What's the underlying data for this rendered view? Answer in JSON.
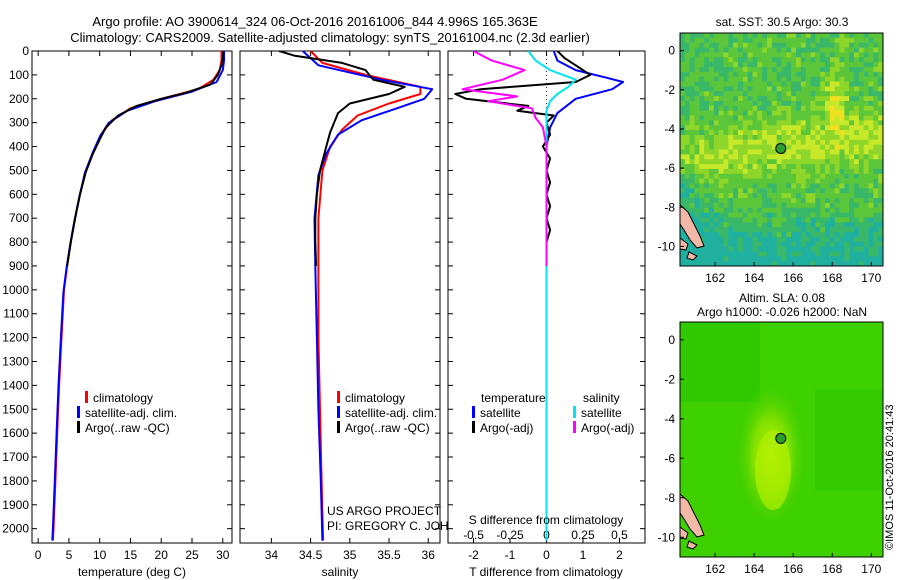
{
  "header": {
    "line1": "Argo profile: AO 3900614_324 06-Oct-2016 20161006_844 4.996S 165.363E",
    "line2": "Climatology: CARS2009. Satellite-adjusted climatology: synTS_20161004.nc (2.3d earlier)"
  },
  "side_label": "©IMOS 11-Oct-2016 20:41:43",
  "colors": {
    "clim": "#ff0000",
    "sat": "#0000ff",
    "argo": "#000000",
    "sat_sal": "#00e5ee",
    "argo_sal": "#ff00ff",
    "land": "#f2b8a8"
  },
  "chart_data": [
    {
      "type": "line",
      "id": "temp",
      "xlabel": "temperature (deg C)",
      "ylabel": "",
      "xlim": [
        -1,
        31.5
      ],
      "ylim": [
        0,
        2060
      ],
      "xticks": [
        0,
        5,
        10,
        15,
        20,
        25,
        30
      ],
      "yticks": [
        0,
        100,
        200,
        300,
        400,
        500,
        600,
        700,
        800,
        900,
        1000,
        1100,
        1200,
        1300,
        1400,
        1500,
        1600,
        1700,
        1800,
        1900,
        2000
      ],
      "legend": [
        "climatology",
        "satellite-adj. clim.",
        "Argo(..raw -QC)"
      ],
      "series": [
        {
          "name": "climatology",
          "color": "#ff0000",
          "points": [
            [
              29.8,
              0
            ],
            [
              29.8,
              40
            ],
            [
              29.5,
              80
            ],
            [
              28.5,
              120
            ],
            [
              26,
              160
            ],
            [
              20,
              200
            ],
            [
              15,
              240
            ],
            [
              12,
              290
            ],
            [
              10.2,
              350
            ],
            [
              9,
              420
            ],
            [
              7.8,
              500
            ],
            [
              6.8,
              600
            ],
            [
              6,
              700
            ],
            [
              5.3,
              800
            ],
            [
              4.7,
              900
            ],
            [
              4.2,
              1000
            ],
            [
              3.8,
              1200
            ],
            [
              3.4,
              1400
            ],
            [
              3.1,
              1600
            ],
            [
              2.8,
              1800
            ],
            [
              2.5,
              2000
            ],
            [
              2.4,
              2050
            ]
          ]
        },
        {
          "name": "satellite-adj. clim.",
          "color": "#0000ff",
          "points": [
            [
              30.2,
              0
            ],
            [
              30.2,
              40
            ],
            [
              30,
              80
            ],
            [
              29,
              130
            ],
            [
              25,
              170
            ],
            [
              19,
              210
            ],
            [
              14.5,
              250
            ],
            [
              11.5,
              300
            ],
            [
              10,
              360
            ],
            [
              8.8,
              430
            ],
            [
              7.6,
              510
            ],
            [
              6.7,
              610
            ],
            [
              5.9,
              710
            ],
            [
              5.2,
              810
            ],
            [
              4.6,
              910
            ],
            [
              4.1,
              1010
            ],
            [
              3.7,
              1200
            ],
            [
              3.3,
              1400
            ],
            [
              3,
              1600
            ],
            [
              2.7,
              1800
            ],
            [
              2.4,
              2000
            ],
            [
              2.3,
              2050
            ]
          ]
        },
        {
          "name": "Argo(..raw -QC)",
          "color": "#000000",
          "points": [
            [
              30.1,
              0
            ],
            [
              30,
              30
            ],
            [
              29.8,
              60
            ],
            [
              29.2,
              100
            ],
            [
              28,
              140
            ],
            [
              24,
              175
            ],
            [
              20,
              200
            ],
            [
              16,
              230
            ],
            [
              13,
              270
            ],
            [
              11,
              320
            ],
            [
              10,
              370
            ],
            [
              8.9,
              430
            ],
            [
              7.7,
              510
            ],
            [
              6.8,
              600
            ],
            [
              6,
              700
            ],
            [
              5.3,
              800
            ],
            [
              4.7,
              900
            ]
          ]
        }
      ]
    },
    {
      "type": "line",
      "id": "sal",
      "xlabel": "salinity",
      "ylabel": "",
      "xlim": [
        33.6,
        36.15
      ],
      "ylim": [
        0,
        2060
      ],
      "xticks": [
        34,
        34.5,
        35,
        35.5,
        36
      ],
      "tick_labels": [
        "34",
        "34.5",
        "35",
        "35.5",
        "36"
      ],
      "legend": [
        "climatology",
        "satellite-adj. clim.",
        "Argo(..raw -QC)"
      ],
      "annotation": [
        "US ARGO PROJECT",
        "PI: GREGORY C. JOHNSON"
      ],
      "series": [
        {
          "name": "climatology",
          "color": "#ff0000",
          "points": [
            [
              34.5,
              0
            ],
            [
              34.65,
              50
            ],
            [
              35.2,
              100
            ],
            [
              35.9,
              150
            ],
            [
              35.9,
              180
            ],
            [
              35.5,
              220
            ],
            [
              35.1,
              270
            ],
            [
              34.9,
              330
            ],
            [
              34.75,
              400
            ],
            [
              34.65,
              500
            ],
            [
              34.6,
              700
            ],
            [
              34.6,
              900
            ],
            [
              34.6,
              1200
            ],
            [
              34.62,
              1500
            ],
            [
              34.64,
              1800
            ],
            [
              34.66,
              2050
            ]
          ]
        },
        {
          "name": "satellite-adj. clim.",
          "color": "#0000ff",
          "points": [
            [
              34.4,
              0
            ],
            [
              34.6,
              60
            ],
            [
              35.4,
              120
            ],
            [
              36.05,
              160
            ],
            [
              35.95,
              200
            ],
            [
              35.6,
              240
            ],
            [
              35.15,
              290
            ],
            [
              34.85,
              350
            ],
            [
              34.7,
              430
            ],
            [
              34.6,
              520
            ],
            [
              34.55,
              700
            ],
            [
              34.56,
              900
            ],
            [
              34.58,
              1200
            ],
            [
              34.6,
              1500
            ],
            [
              34.63,
              1800
            ],
            [
              34.65,
              2050
            ]
          ]
        },
        {
          "name": "Argo(..raw -QC)",
          "color": "#000000",
          "points": [
            [
              34.1,
              0
            ],
            [
              34.3,
              20
            ],
            [
              34.9,
              50
            ],
            [
              35.2,
              80
            ],
            [
              35.3,
              120
            ],
            [
              35.7,
              150
            ],
            [
              35.5,
              180
            ],
            [
              35.0,
              220
            ],
            [
              34.85,
              260
            ],
            [
              34.8,
              300
            ],
            [
              34.75,
              340
            ],
            [
              34.7,
              400
            ],
            [
              34.62,
              500
            ],
            [
              34.58,
              600
            ],
            [
              34.56,
              700
            ],
            [
              34.56,
              800
            ],
            [
              34.57,
              900
            ]
          ]
        }
      ]
    },
    {
      "type": "line",
      "id": "diff",
      "xlabel": "T difference from climatology",
      "xlabel_top": "S difference from climatology",
      "xlim": [
        -2.7,
        2.7
      ],
      "ylim": [
        0,
        2060
      ],
      "xticks": [
        -2,
        -1,
        0,
        1,
        2
      ],
      "tick_labels": [
        "-2",
        "-1",
        "0",
        "1",
        "2"
      ],
      "s_ticks": [
        -0.5,
        -0.25,
        0,
        0.25,
        0.5
      ],
      "s_tick_labels": [
        "-0.5",
        "-0.25",
        "0",
        "0.25",
        "0.5"
      ],
      "s_ticks_at": [
        -2,
        -1,
        0,
        1,
        2
      ],
      "legend": {
        "temperature": "temperature",
        "salinity": "salinity",
        "t_sat": "satellite",
        "t_argo": "Argo(-adj)",
        "s_sat": "satellite",
        "s_argo": "Argo(-adj)"
      },
      "series": [
        {
          "name": "temperature satellite",
          "color": "#0000ff",
          "points": [
            [
              0.2,
              0
            ],
            [
              0.3,
              40
            ],
            [
              0.8,
              80
            ],
            [
              1.6,
              110
            ],
            [
              2.1,
              130
            ],
            [
              1.8,
              160
            ],
            [
              0.8,
              200
            ],
            [
              0.3,
              260
            ],
            [
              0.1,
              320
            ],
            [
              0,
              400
            ],
            [
              0,
              600
            ],
            [
              0,
              900
            ],
            [
              0,
              1200
            ],
            [
              0,
              1500
            ],
            [
              0,
              1800
            ],
            [
              0,
              2050
            ]
          ]
        },
        {
          "name": "temperature Argo(-adj)",
          "color": "#000000",
          "points": [
            [
              0.3,
              0
            ],
            [
              0.5,
              30
            ],
            [
              0.8,
              60
            ],
            [
              1.2,
              100
            ],
            [
              0.8,
              130
            ],
            [
              -1.8,
              160
            ],
            [
              -2.5,
              180
            ],
            [
              -2.2,
              200
            ],
            [
              -0.5,
              230
            ],
            [
              -0.8,
              250
            ],
            [
              0.2,
              270
            ],
            [
              0,
              300
            ],
            [
              0.1,
              350
            ],
            [
              -0.1,
              400
            ],
            [
              0.1,
              450
            ],
            [
              0,
              500
            ],
            [
              0.1,
              550
            ],
            [
              0,
              600
            ],
            [
              0.1,
              650
            ],
            [
              0,
              700
            ],
            [
              0.1,
              750
            ],
            [
              0,
              800
            ],
            [
              0,
              900
            ]
          ]
        },
        {
          "name": "salinity satellite",
          "color": "#00e5ee",
          "points": [
            [
              -0.5,
              0
            ],
            [
              -0.3,
              40
            ],
            [
              0.1,
              80
            ],
            [
              0.8,
              120
            ],
            [
              0.6,
              150
            ],
            [
              0.3,
              180
            ],
            [
              0.1,
              210
            ],
            [
              0,
              250
            ],
            [
              0,
              400
            ],
            [
              0,
              700
            ],
            [
              0,
              1000
            ],
            [
              0,
              1400
            ],
            [
              0,
              1800
            ],
            [
              0,
              2050
            ]
          ]
        },
        {
          "name": "salinity Argo(-adj)",
          "color": "#ff00ff",
          "points": [
            [
              -2,
              0
            ],
            [
              -1.5,
              40
            ],
            [
              -0.6,
              80
            ],
            [
              -1.2,
              120
            ],
            [
              -2.3,
              160
            ],
            [
              -0.8,
              190
            ],
            [
              -1.6,
              210
            ],
            [
              -0.4,
              240
            ],
            [
              -0.3,
              280
            ],
            [
              -0.1,
              320
            ],
            [
              0,
              400
            ],
            [
              0,
              600
            ],
            [
              0,
              900
            ]
          ]
        }
      ]
    },
    {
      "type": "heatmap",
      "id": "sst_map",
      "title": "sat. SST: 30.5 Argo: 30.3",
      "xlim": [
        160.2,
        170.6
      ],
      "ylim": [
        -11,
        0.9
      ],
      "xticks": [
        162,
        164,
        166,
        168,
        170
      ],
      "yticks": [
        0,
        -2,
        -4,
        -6,
        -8,
        -10
      ],
      "marker": [
        165.363,
        -4.996
      ]
    },
    {
      "type": "heatmap",
      "id": "sla_map",
      "title": "Altim. SLA: 0.08",
      "subtitle": "Argo h1000: -0.026 h2000: NaN",
      "xlim": [
        160.2,
        170.6
      ],
      "ylim": [
        -11,
        0.9
      ],
      "xticks": [
        162,
        164,
        166,
        168,
        170
      ],
      "yticks": [
        0,
        -2,
        -4,
        -6,
        -8,
        -10
      ],
      "marker": [
        165.363,
        -4.996
      ]
    }
  ]
}
